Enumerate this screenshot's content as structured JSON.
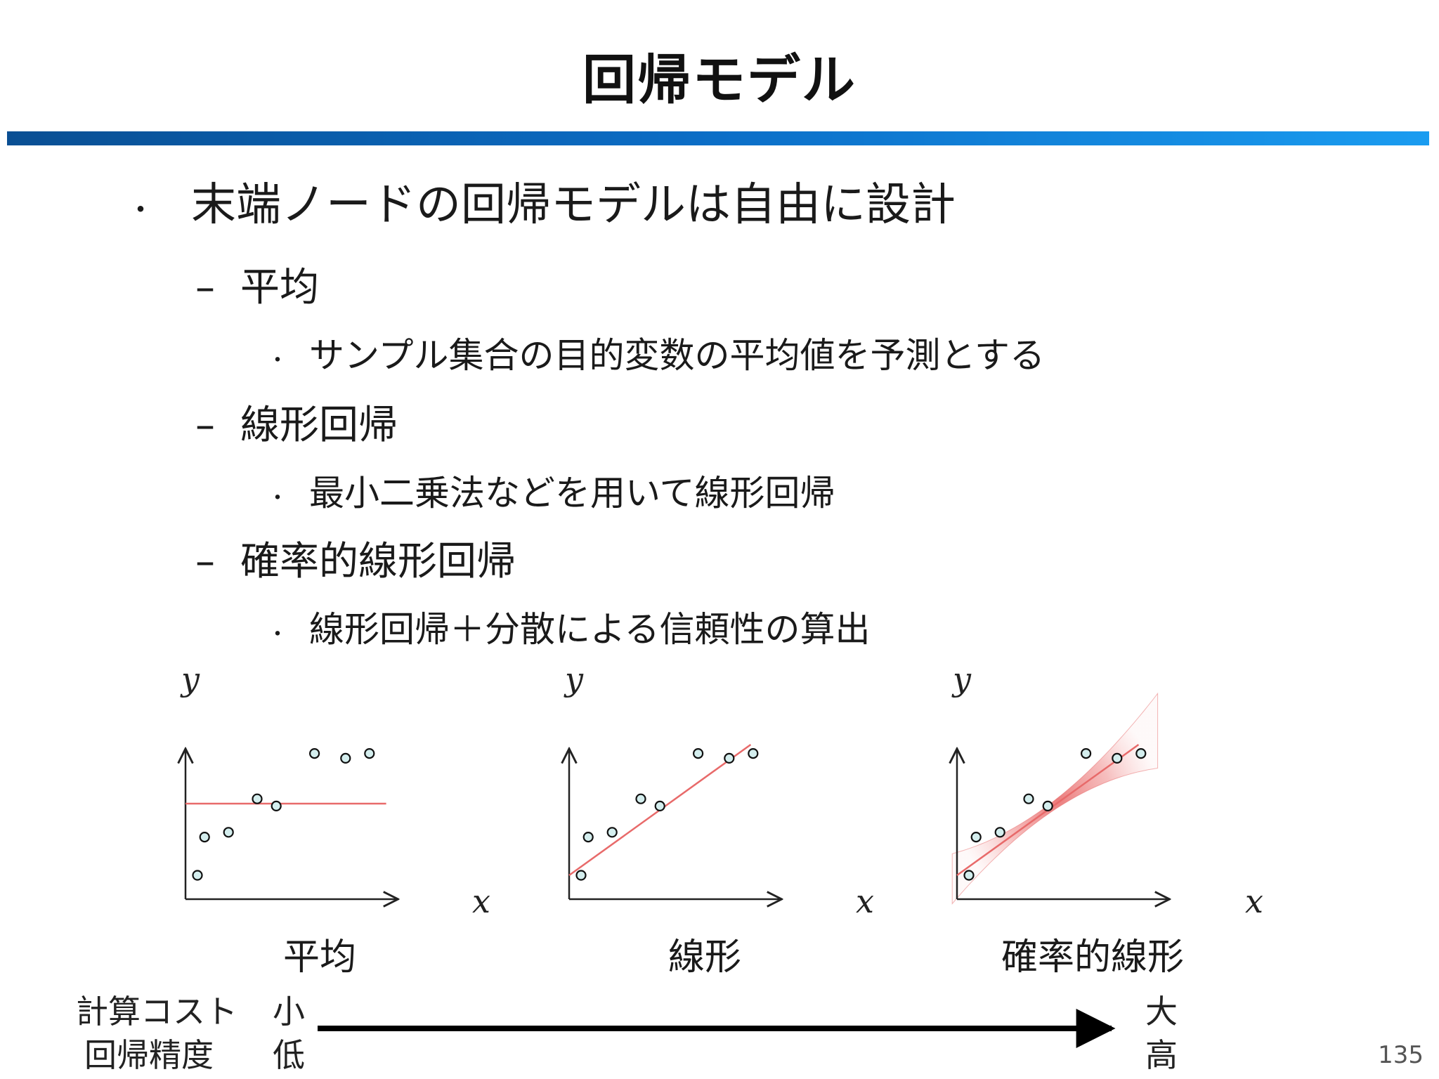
{
  "title": "回帰モデル",
  "bullets": {
    "main": "末端ノードの回帰モデルは自由に設計",
    "avg": {
      "label": "平均",
      "detail": "サンプル集合の目的変数の平均値を予測とする"
    },
    "linear": {
      "label": "線形回帰",
      "detail": "最小二乗法などを用いて線形回帰"
    },
    "prob": {
      "label": "確率的線形回帰",
      "detail": "線形回帰＋分散による信頼性の算出"
    }
  },
  "markers": {
    "dot": "・",
    "dash": "–"
  },
  "plots": {
    "axis_x": "x",
    "axis_y": "y",
    "captions": [
      "平均",
      "線形",
      "確率的線形"
    ],
    "points": [
      [
        0.5,
        1.0
      ],
      [
        0.8,
        2.6
      ],
      [
        1.8,
        2.8
      ],
      [
        3.0,
        4.2
      ],
      [
        3.8,
        3.9
      ],
      [
        5.4,
        6.1
      ],
      [
        6.7,
        5.9
      ],
      [
        7.7,
        6.1
      ]
    ],
    "mean_line_y": 4.0,
    "fit_line": {
      "intercept": 1.0,
      "slope": 0.72
    },
    "accent_color": "#e86a6a",
    "point_fill": "#d4eeee"
  },
  "footer": {
    "cost_label": "計算コスト",
    "accuracy_label": "回帰精度",
    "cost_low": "小",
    "cost_high": "大",
    "acc_low": "低",
    "acc_high": "高"
  },
  "page_number": "135"
}
